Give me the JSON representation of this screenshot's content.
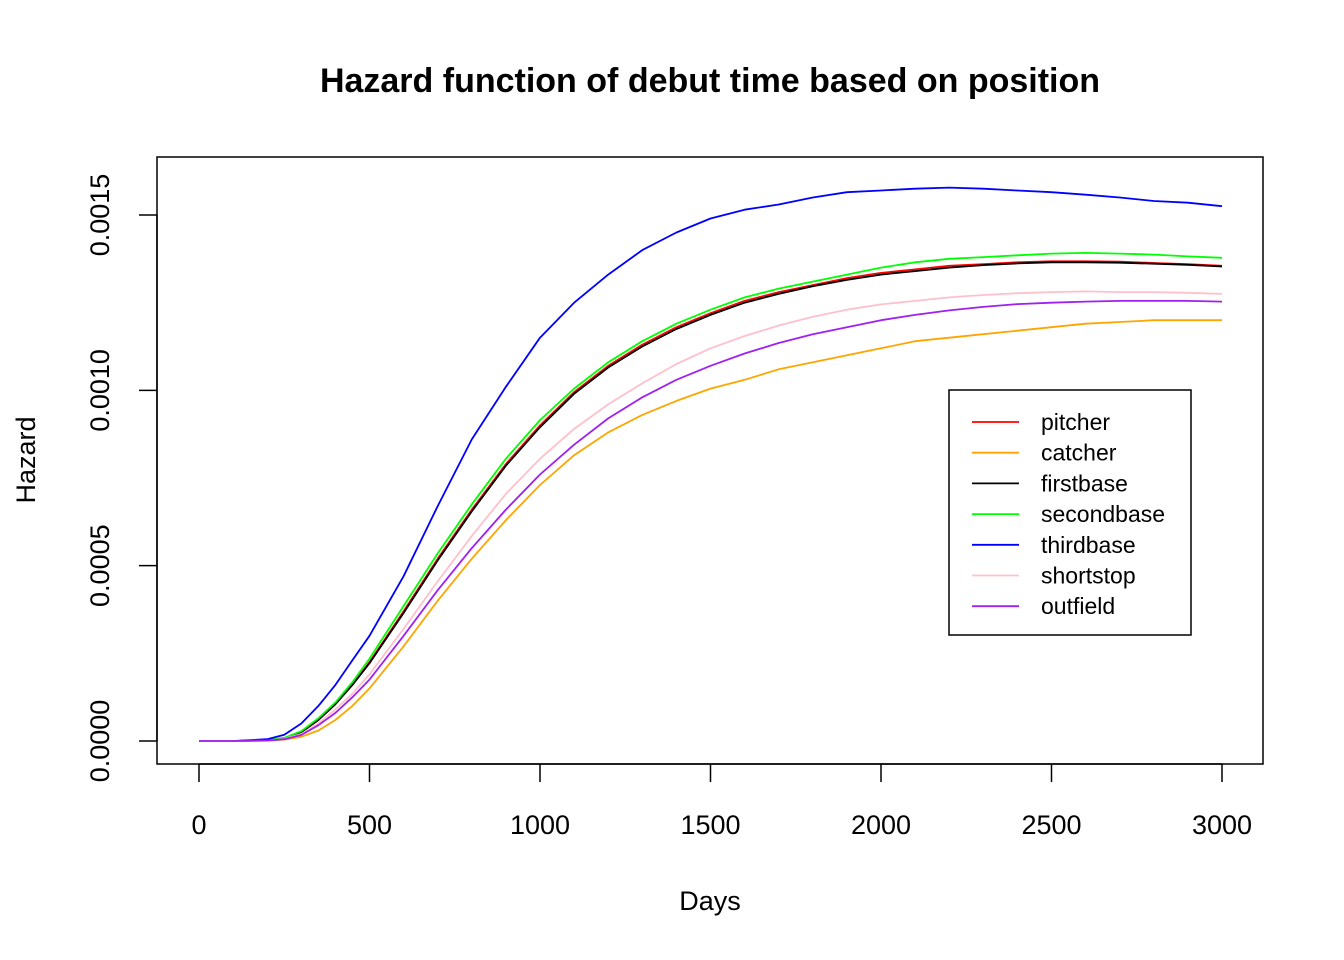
{
  "chart_data": {
    "type": "line",
    "title": "Hazard function of debut time based on position",
    "xlabel": "Days",
    "ylabel": "Hazard",
    "xlim": [
      0,
      3000
    ],
    "ylim": [
      0,
      0.0015
    ],
    "x_ticks": [
      "0",
      "500",
      "1000",
      "1500",
      "2000",
      "2500",
      "3000"
    ],
    "y_ticks": [
      "0.0000",
      "0.0005",
      "0.0010",
      "0.0015"
    ],
    "legend_position": "right",
    "x": [
      0,
      100,
      200,
      250,
      300,
      350,
      400,
      450,
      500,
      600,
      700,
      800,
      900,
      1000,
      1100,
      1200,
      1300,
      1400,
      1500,
      1600,
      1700,
      1800,
      1900,
      2000,
      2100,
      2200,
      2300,
      2400,
      2500,
      2600,
      2700,
      2800,
      2900,
      3000
    ],
    "series": [
      {
        "name": "pitcher",
        "color": "#ff0000",
        "values": [
          0,
          0,
          2e-06,
          8e-06,
          2.5e-05,
          6e-05,
          0.000105,
          0.00016,
          0.000225,
          0.00037,
          0.00052,
          0.00066,
          0.00079,
          0.0009,
          0.000995,
          0.00107,
          0.00113,
          0.00118,
          0.00122,
          0.001255,
          0.00128,
          0.0013,
          0.00132,
          0.001335,
          0.001345,
          0.001355,
          0.00136,
          0.001365,
          0.001368,
          0.001368,
          0.001367,
          0.001363,
          0.00136,
          0.001355
        ]
      },
      {
        "name": "catcher",
        "color": "#ffa500",
        "values": [
          0,
          0,
          1e-06,
          4e-06,
          1.2e-05,
          3e-05,
          6e-05,
          0.0001,
          0.00015,
          0.00027,
          0.0004,
          0.00052,
          0.00063,
          0.00073,
          0.000815,
          0.00088,
          0.00093,
          0.00097,
          0.001005,
          0.00103,
          0.00106,
          0.00108,
          0.0011,
          0.00112,
          0.00114,
          0.00115,
          0.00116,
          0.00117,
          0.00118,
          0.00119,
          0.001195,
          0.0012,
          0.0012,
          0.0012
        ]
      },
      {
        "name": "firstbase",
        "color": "#000000",
        "values": [
          0,
          0,
          2e-06,
          8e-06,
          2.5e-05,
          6e-05,
          0.000105,
          0.00016,
          0.000222,
          0.000365,
          0.000515,
          0.000655,
          0.000785,
          0.000895,
          0.00099,
          0.001065,
          0.001125,
          0.001175,
          0.001215,
          0.00125,
          0.001275,
          0.001297,
          0.001315,
          0.00133,
          0.00134,
          0.00135,
          0.001357,
          0.001362,
          0.001365,
          0.001365,
          0.001364,
          0.001361,
          0.001358,
          0.001353
        ]
      },
      {
        "name": "secondbase",
        "color": "#00ff00",
        "values": [
          0,
          0,
          2e-06,
          9e-06,
          2.8e-05,
          6.5e-05,
          0.00011,
          0.000168,
          0.000235,
          0.000385,
          0.000535,
          0.000675,
          0.000805,
          0.000915,
          0.001005,
          0.00108,
          0.00114,
          0.00119,
          0.00123,
          0.001265,
          0.00129,
          0.00131,
          0.00133,
          0.00135,
          0.001365,
          0.001375,
          0.00138,
          0.001385,
          0.00139,
          0.001392,
          0.00139,
          0.001387,
          0.001382,
          0.001378
        ]
      },
      {
        "name": "thirdbase",
        "color": "#0000ff",
        "values": [
          0,
          0,
          5e-06,
          1.8e-05,
          5e-05,
          0.0001,
          0.00016,
          0.00023,
          0.0003,
          0.00047,
          0.00067,
          0.00086,
          0.00101,
          0.00115,
          0.00125,
          0.00133,
          0.0014,
          0.00145,
          0.00149,
          0.001515,
          0.00153,
          0.00155,
          0.001565,
          0.00157,
          0.001575,
          0.001578,
          0.001575,
          0.00157,
          0.001565,
          0.001558,
          0.00155,
          0.00154,
          0.001535,
          0.001525
        ]
      },
      {
        "name": "shortstop",
        "color": "#ffc0cb",
        "values": [
          0,
          0,
          1e-06,
          6e-06,
          2e-05,
          5e-05,
          9e-05,
          0.000135,
          0.00019,
          0.00032,
          0.000455,
          0.000585,
          0.000705,
          0.000805,
          0.00089,
          0.00096,
          0.00102,
          0.001075,
          0.00112,
          0.001155,
          0.001185,
          0.00121,
          0.00123,
          0.001245,
          0.001255,
          0.001265,
          0.001272,
          0.001277,
          0.00128,
          0.001282,
          0.00128,
          0.00128,
          0.001278,
          0.001275
        ]
      },
      {
        "name": "outfield",
        "color": "#a020f0",
        "values": [
          0,
          0,
          1e-06,
          5e-06,
          1.7e-05,
          4.5e-05,
          8e-05,
          0.000125,
          0.000175,
          0.0003,
          0.00043,
          0.00055,
          0.00066,
          0.00076,
          0.000845,
          0.00092,
          0.00098,
          0.00103,
          0.00107,
          0.001105,
          0.001135,
          0.00116,
          0.00118,
          0.0012,
          0.001215,
          0.001228,
          0.001238,
          0.001246,
          0.00125,
          0.001253,
          0.001255,
          0.001255,
          0.001255,
          0.001253
        ]
      }
    ]
  }
}
